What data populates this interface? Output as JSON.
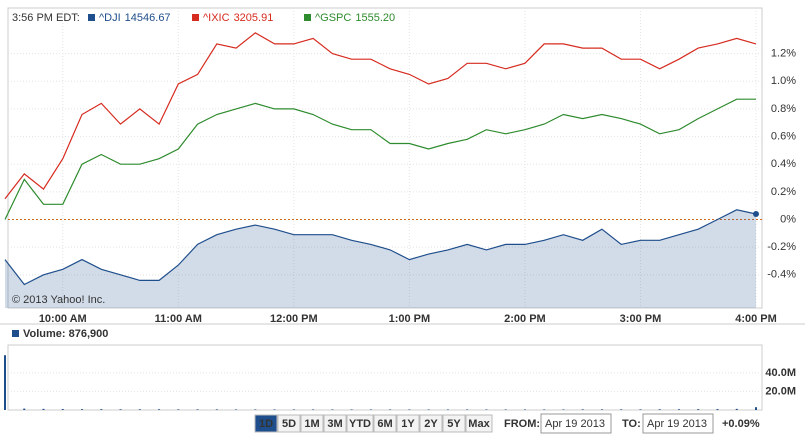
{
  "chart_data": [
    {
      "type": "line",
      "time_label": "3:56 PM EDT:",
      "categories": [
        null,
        null,
        null,
        "10:00 AM",
        null,
        null,
        null,
        null,
        null,
        "11:00 AM",
        null,
        null,
        null,
        null,
        null,
        "12:00 PM",
        null,
        null,
        null,
        null,
        null,
        "1:00 PM",
        null,
        null,
        null,
        null,
        null,
        "2:00 PM",
        null,
        null,
        null,
        null,
        null,
        "3:00 PM",
        null,
        null,
        null,
        null,
        null,
        "4:00 PM"
      ],
      "series": [
        {
          "name": "^DJI",
          "quote": "14546.67",
          "color": "#1f4e8c",
          "area": true,
          "values": [
            -0.29,
            -0.47,
            -0.4,
            -0.36,
            -0.29,
            -0.36,
            -0.4,
            -0.44,
            -0.44,
            -0.33,
            -0.18,
            -0.11,
            -0.07,
            -0.04,
            -0.07,
            -0.11,
            -0.11,
            -0.11,
            -0.15,
            -0.18,
            -0.22,
            -0.29,
            -0.25,
            -0.22,
            -0.18,
            -0.22,
            -0.18,
            -0.18,
            -0.15,
            -0.11,
            -0.15,
            -0.07,
            -0.18,
            -0.15,
            -0.15,
            -0.11,
            -0.07,
            0,
            0.07,
            0.04
          ]
        },
        {
          "name": "^IXIC",
          "quote": "3205.91",
          "color": "#d62b1f",
          "values": [
            0.15,
            0.33,
            0.22,
            0.44,
            0.76,
            0.84,
            0.69,
            0.8,
            0.69,
            0.98,
            1.05,
            1.27,
            1.24,
            1.35,
            1.27,
            1.27,
            1.31,
            1.2,
            1.16,
            1.16,
            1.09,
            1.05,
            0.98,
            1.02,
            1.13,
            1.13,
            1.09,
            1.13,
            1.27,
            1.27,
            1.24,
            1.24,
            1.16,
            1.16,
            1.09,
            1.16,
            1.24,
            1.27,
            1.31,
            1.27
          ]
        },
        {
          "name": "^GSPC",
          "quote": "1555.20",
          "color": "#2e8b2e",
          "values": [
            0,
            0.29,
            0.11,
            0.11,
            0.4,
            0.47,
            0.4,
            0.4,
            0.44,
            0.51,
            0.69,
            0.76,
            0.8,
            0.84,
            0.8,
            0.8,
            0.76,
            0.69,
            0.65,
            0.65,
            0.55,
            0.55,
            0.51,
            0.55,
            0.58,
            0.65,
            0.62,
            0.65,
            0.69,
            0.76,
            0.73,
            0.76,
            0.73,
            0.69,
            0.62,
            0.65,
            0.73,
            0.8,
            0.87,
            0.87
          ]
        }
      ],
      "ylim": [
        -0.64,
        1.53
      ],
      "yticks": [
        {
          "value": -0.4,
          "label": "-0.4%"
        },
        {
          "value": -0.2,
          "label": "-0.2%"
        },
        {
          "value": 0,
          "label": "0%"
        },
        {
          "value": 0.2,
          "label": "0.2%"
        },
        {
          "value": 0.4,
          "label": "0.4%"
        },
        {
          "value": 0.6,
          "label": "0.6%"
        },
        {
          "value": 0.8,
          "label": "0.8%"
        },
        {
          "value": 1.0,
          "label": "1.0%"
        },
        {
          "value": 1.2,
          "label": "1.2%"
        }
      ],
      "grid": true,
      "watermark": "© 2013 Yahoo! Inc."
    },
    {
      "type": "bar",
      "title": "Volume: 876,900",
      "color": "#1f4e8c",
      "values": [
        59000000,
        1500000,
        1200000,
        1000000,
        900000,
        900000,
        800000,
        800000,
        800000,
        700000,
        700000,
        700000,
        600000,
        600000,
        600000,
        600000,
        600000,
        600000,
        600000,
        600000,
        600000,
        600000,
        600000,
        600000,
        600000,
        600000,
        600000,
        600000,
        600000,
        600000,
        700000,
        700000,
        700000,
        700000,
        800000,
        800000,
        900000,
        1000000,
        1200000,
        3000000
      ],
      "ylim": [
        0,
        70000000
      ],
      "yticks": [
        {
          "value": 20000000,
          "label": "20.0M"
        },
        {
          "value": 40000000,
          "label": "40.0M"
        }
      ]
    }
  ],
  "controls": {
    "ranges": [
      "1D",
      "5D",
      "1M",
      "3M",
      "YTD",
      "6M",
      "1Y",
      "2Y",
      "5Y",
      "Max"
    ],
    "from_label": "FROM:",
    "from_value": "Apr 19 2013",
    "to_label": "TO:",
    "to_value": "Apr 19 2013",
    "change": "+0.09%"
  }
}
